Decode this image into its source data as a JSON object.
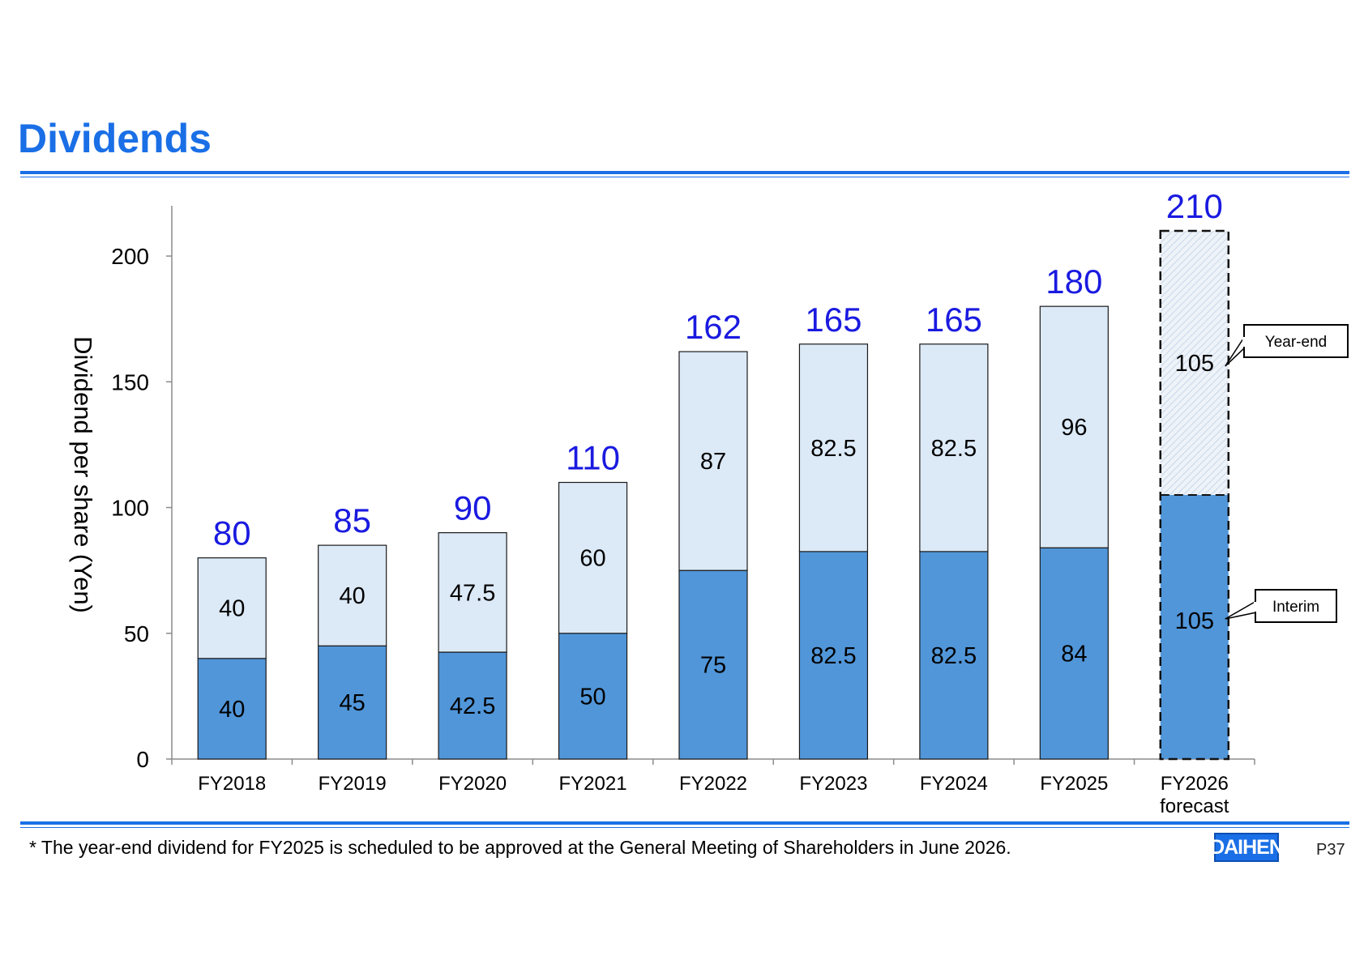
{
  "page": {
    "title": "Dividends",
    "footnote": "* The year-end dividend for FY2025 is scheduled to be approved at the General Meeting of Shareholders in June 2026.",
    "logo_text": "DAIHEN",
    "page_number": "P37"
  },
  "colors": {
    "accent": "#1a6fe6",
    "interim": "#5196d9",
    "year_end": "#dce9f6",
    "total_label": "#1a1ae0"
  },
  "chart_data": {
    "type": "bar",
    "stacked": true,
    "categories": [
      "FY2018",
      "FY2019",
      "FY2020",
      "FY2021",
      "FY2022",
      "FY2023",
      "FY2024",
      "FY2025",
      "FY2026 forecast"
    ],
    "category_lines": [
      [
        "FY2018"
      ],
      [
        "FY2019"
      ],
      [
        "FY2020"
      ],
      [
        "FY2021"
      ],
      [
        "FY2022"
      ],
      [
        "FY2023"
      ],
      [
        "FY2024"
      ],
      [
        "FY2025"
      ],
      [
        "FY2026",
        "forecast"
      ]
    ],
    "series": [
      {
        "name": "Interim",
        "values": [
          40,
          45,
          42.5,
          50,
          75,
          82.5,
          82.5,
          84,
          105
        ]
      },
      {
        "name": "Year-end",
        "values": [
          40,
          40,
          47.5,
          60,
          87,
          82.5,
          82.5,
          96,
          105
        ]
      }
    ],
    "totals": [
      80,
      85,
      90,
      110,
      162,
      165,
      165,
      180,
      210
    ],
    "value_labels": {
      "interim": [
        "40",
        "45",
        "42.5",
        "50",
        "75",
        "82.5",
        "82.5",
        "84",
        "105"
      ],
      "year_end": [
        "40",
        "40",
        "47.5",
        "60",
        "87",
        "82.5",
        "82.5",
        "96",
        "105"
      ],
      "totals": [
        "80",
        "85",
        "90",
        "110",
        "162",
        "165",
        "165",
        "180",
        "210"
      ]
    },
    "forecast_index": 8,
    "ylabel": "Dividend per share (Yen)",
    "xlabel": "",
    "ylim": [
      0,
      220
    ],
    "yticks": [
      0,
      50,
      100,
      150,
      200
    ],
    "grid": false,
    "callouts": [
      {
        "text": "Year-end",
        "series": "Year-end"
      },
      {
        "text": "Interim",
        "series": "Interim"
      }
    ]
  }
}
